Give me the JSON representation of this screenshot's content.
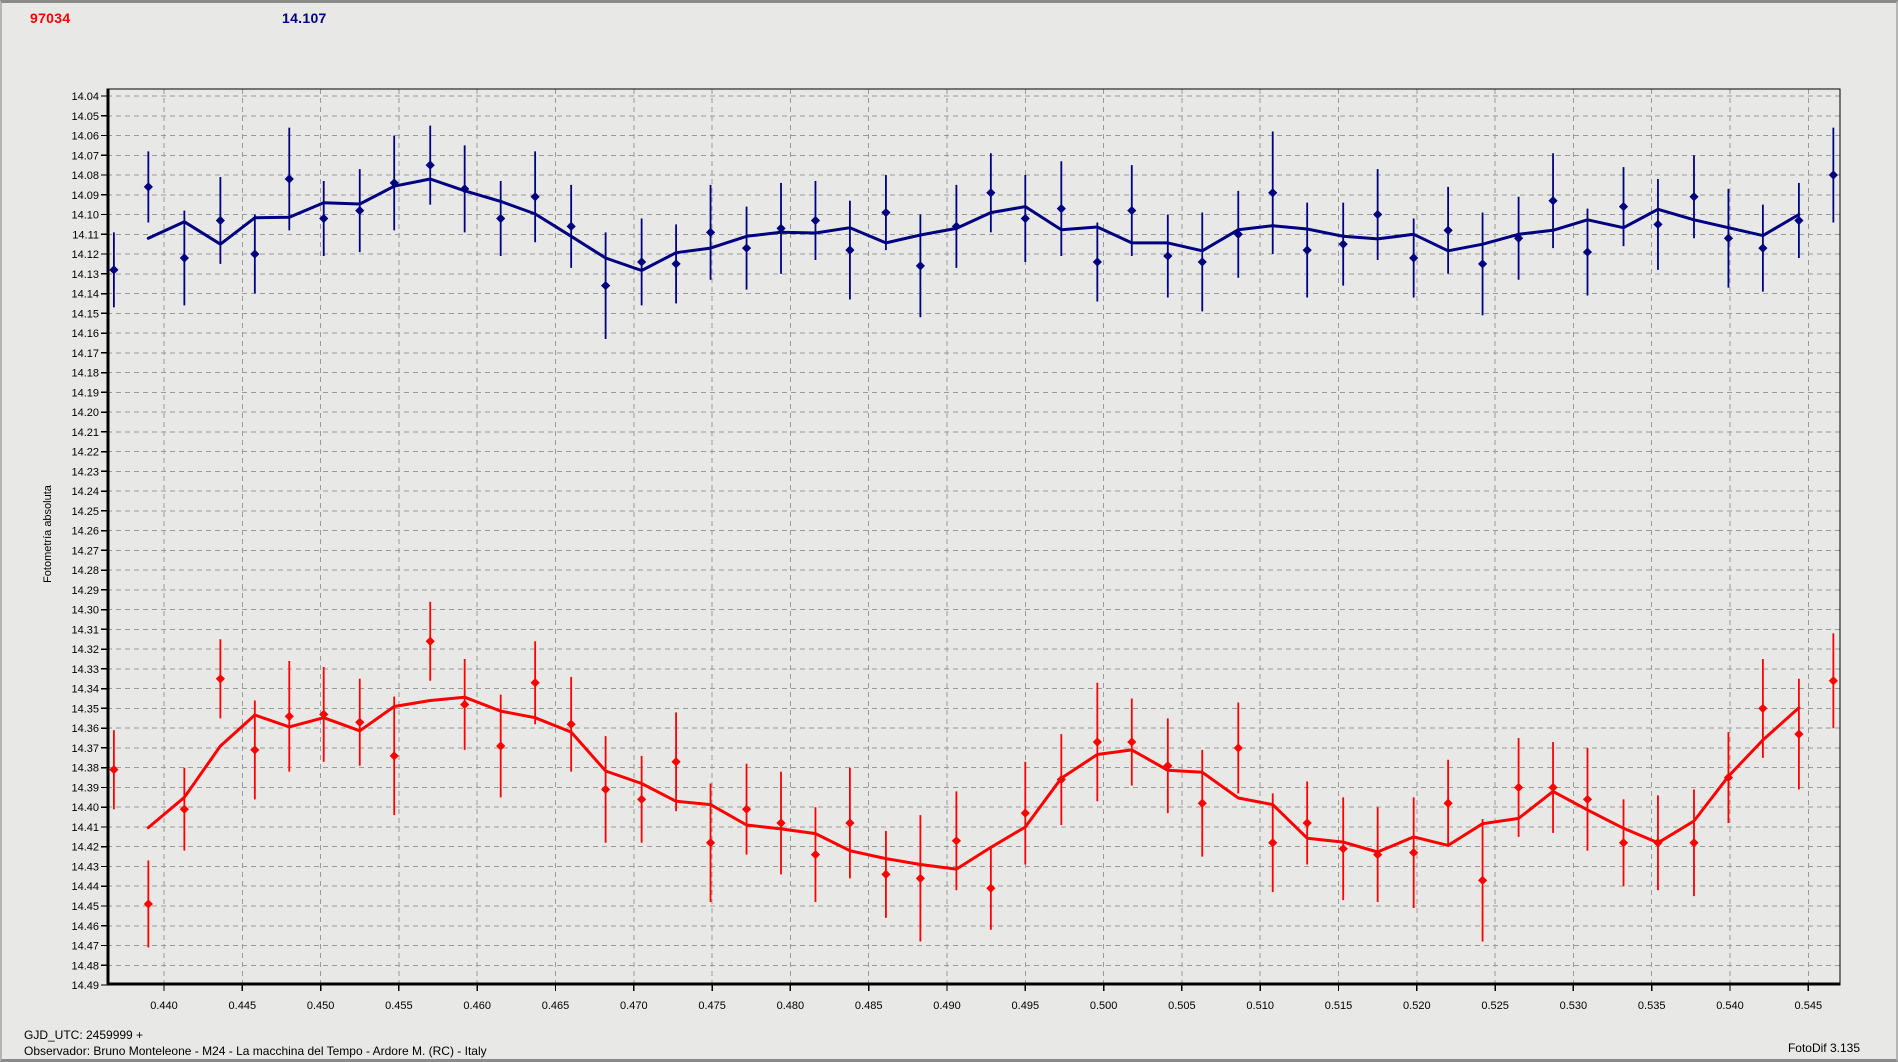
{
  "window": {
    "background": "#e8e8e6",
    "grid_color": "#9a9a9a",
    "axis_color": "#000000"
  },
  "header": {
    "object_id": "97034",
    "object_id_color": "#ff0000",
    "mean_mag": "14.107",
    "mean_mag_color": "#000080"
  },
  "ylabel": "Fotometría absoluta",
  "footer": {
    "gjd_line": "GJD_UTC: 2459999 +",
    "observer_line": "Observador: Bruno Monteleone - M24 - La macchina del Tempo - Ardore M. (RC) - Italy",
    "app_version": "FotoDif 3.135"
  },
  "chart_data": {
    "type": "scatter",
    "title": "",
    "xlabel": "",
    "ylabel": "Fotometría absoluta",
    "y_axis_inverted": true,
    "grid": "dashed",
    "legend": "none",
    "x_ticks": {
      "min": 0.44,
      "max": 0.545,
      "step": 0.005,
      "decimals": 3
    },
    "y_ticks": {
      "min": 14.04,
      "max": 14.49,
      "step": 0.01,
      "decimals": 2
    },
    "xlim": [
      0.4364,
      0.547
    ],
    "ylim": [
      14.0365,
      14.49
    ],
    "mean_line": {
      "method": "moving_average",
      "window": 3
    },
    "x": [
      0.4368,
      0.439,
      0.4413,
      0.4436,
      0.4458,
      0.448,
      0.4502,
      0.4525,
      0.4547,
      0.457,
      0.4592,
      0.4615,
      0.4637,
      0.466,
      0.4682,
      0.4705,
      0.4727,
      0.4749,
      0.4772,
      0.4794,
      0.4816,
      0.4838,
      0.4861,
      0.4883,
      0.4906,
      0.4928,
      0.495,
      0.4973,
      0.4996,
      0.5018,
      0.5041,
      0.5063,
      0.5086,
      0.5108,
      0.513,
      0.5153,
      0.5175,
      0.5198,
      0.522,
      0.5242,
      0.5265,
      0.5287,
      0.5309,
      0.5332,
      0.5354,
      0.5377,
      0.5399,
      0.5421,
      0.5444,
      0.5466
    ],
    "series": [
      {
        "name": "blue",
        "color": "#000080",
        "values": [
          14.128,
          14.086,
          14.122,
          14.103,
          14.12,
          14.082,
          14.102,
          14.098,
          14.084,
          14.075,
          14.087,
          14.102,
          14.091,
          14.106,
          14.136,
          14.124,
          14.125,
          14.109,
          14.117,
          14.107,
          14.103,
          14.118,
          14.099,
          14.126,
          14.106,
          14.089,
          14.102,
          14.097,
          14.124,
          14.098,
          14.121,
          14.124,
          14.11,
          14.089,
          14.118,
          14.115,
          14.1,
          14.122,
          14.108,
          14.125,
          14.112,
          14.093,
          14.119,
          14.096,
          14.105,
          14.091,
          14.112,
          14.117,
          14.103,
          14.08
        ],
        "err": [
          0.019,
          0.018,
          0.024,
          0.022,
          0.02,
          0.026,
          0.019,
          0.021,
          0.024,
          0.02,
          0.022,
          0.019,
          0.023,
          0.021,
          0.027,
          0.022,
          0.02,
          0.024,
          0.021,
          0.023,
          0.02,
          0.025,
          0.019,
          0.026,
          0.021,
          0.02,
          0.022,
          0.024,
          0.02,
          0.023,
          0.021,
          0.025,
          0.022,
          0.031,
          0.024,
          0.021,
          0.023,
          0.02,
          0.022,
          0.026,
          0.021,
          0.024,
          0.022,
          0.02,
          0.023,
          0.021,
          0.025,
          0.022,
          0.019,
          0.024
        ]
      },
      {
        "name": "red",
        "color": "#ff0000",
        "values": [
          14.381,
          14.449,
          14.401,
          14.335,
          14.371,
          14.354,
          14.353,
          14.357,
          14.374,
          14.316,
          14.348,
          14.369,
          14.337,
          14.358,
          14.391,
          14.396,
          14.377,
          14.418,
          14.401,
          14.408,
          14.424,
          14.408,
          14.434,
          14.436,
          14.417,
          14.441,
          14.403,
          14.386,
          14.367,
          14.367,
          14.379,
          14.398,
          14.37,
          14.418,
          14.408,
          14.421,
          14.424,
          14.423,
          14.398,
          14.437,
          14.39,
          14.39,
          14.396,
          14.418,
          14.418,
          14.418,
          14.385,
          14.35,
          14.363,
          14.336
        ],
        "err": [
          0.02,
          0.022,
          0.021,
          0.02,
          0.025,
          0.028,
          0.024,
          0.022,
          0.03,
          0.02,
          0.023,
          0.026,
          0.021,
          0.024,
          0.027,
          0.022,
          0.025,
          0.03,
          0.023,
          0.026,
          0.024,
          0.028,
          0.022,
          0.032,
          0.025,
          0.021,
          0.026,
          0.023,
          0.03,
          0.022,
          0.024,
          0.027,
          0.023,
          0.025,
          0.021,
          0.026,
          0.024,
          0.028,
          0.022,
          0.031,
          0.025,
          0.023,
          0.026,
          0.022,
          0.024,
          0.027,
          0.023,
          0.025,
          0.028,
          0.024
        ]
      }
    ]
  }
}
